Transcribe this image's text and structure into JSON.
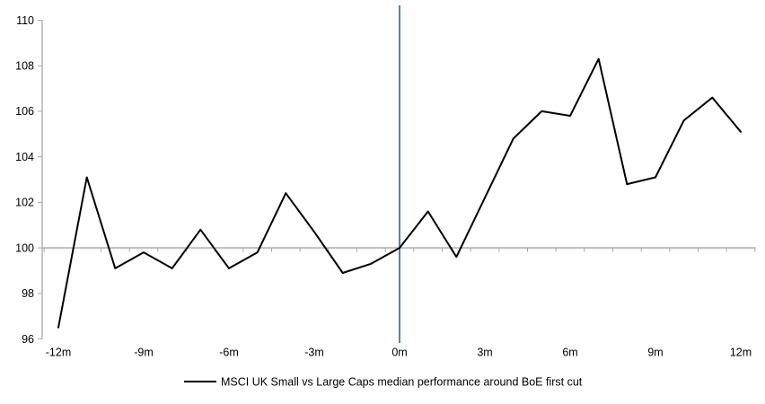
{
  "chart_data": {
    "type": "line",
    "legend": "MSCI UK Small vs Large Caps median performance around BoE first cut",
    "months": [
      -12,
      -11,
      -10,
      -9,
      -8,
      -7,
      -6,
      -5,
      -4,
      -3,
      -2,
      -1,
      0,
      1,
      2,
      3,
      4,
      5,
      6,
      7,
      8,
      9,
      10,
      11,
      12
    ],
    "series": [
      {
        "name": "MSCI UK Small vs Large Caps median performance around BoE first cut",
        "values": [
          96.5,
          103.1,
          99.1,
          99.8,
          99.1,
          100.8,
          99.1,
          99.8,
          102.4,
          100.7,
          98.9,
          99.3,
          100.0,
          101.6,
          99.6,
          102.2,
          104.8,
          106.0,
          105.8,
          108.3,
          102.8,
          103.1,
          105.6,
          106.6,
          105.1
        ]
      }
    ],
    "x_tick_positions": [
      -12,
      -9,
      -6,
      -3,
      0,
      3,
      6,
      9,
      12
    ],
    "x_tick_labels": [
      "-12m",
      "-9m",
      "-6m",
      "-3m",
      "0m",
      "3m",
      "6m",
      "9m",
      "12m"
    ],
    "y_ticks": [
      110,
      108,
      106,
      104,
      102,
      100,
      98,
      96
    ],
    "ylim": [
      96,
      110
    ],
    "xlim": [
      -12,
      12
    ],
    "reference_line_y": 100,
    "event_line_x": 0,
    "grid": "off",
    "legend_position": "bottom-center",
    "colors": {
      "series": "#000000",
      "event_line": "#4F81BD",
      "axis": "#A6A6A6",
      "text": "#000000"
    }
  }
}
